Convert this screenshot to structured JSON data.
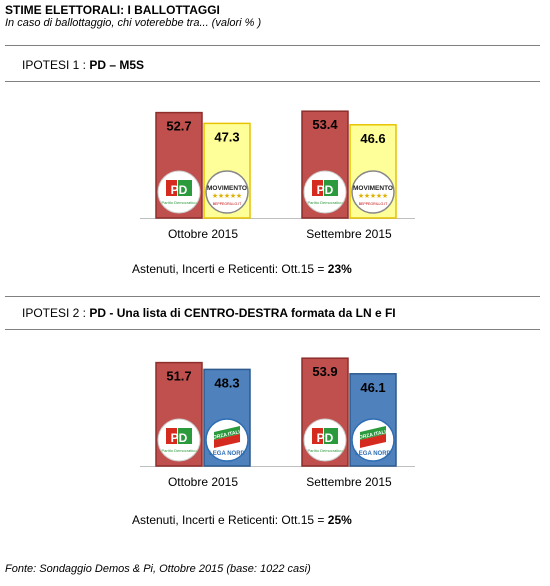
{
  "header": {
    "title": "STIME ELETTORALI:  I BALLOTTAGGI",
    "subtitle": "In caso di ballottaggio, chi voterebbe tra... (valori % )"
  },
  "source": "Fonte: Sondaggio Demos & Pi, Ottobre 2015 (base: 1022 casi)",
  "colors": {
    "pd": "#c0504d",
    "m5s": "#ffff99",
    "cdx": "#4f81bd"
  },
  "chart_data": [
    {
      "type": "bar",
      "hypothesis_label": "IPOTESI 1 :",
      "hypothesis_text": "PD – M5S",
      "categories": [
        "Ottobre 2015",
        "Settembre 2015"
      ],
      "series": [
        {
          "values": [
            52.7,
            53.4
          ],
          "labels": [
            "52.7",
            "53.4"
          ],
          "color": "#c0504d",
          "logo": "pd-logo"
        },
        {
          "values": [
            47.3,
            46.6
          ],
          "labels": [
            "47.3",
            "46.6"
          ],
          "color": "#ffff99",
          "logo": "m5s-logo"
        }
      ],
      "ylim": [
        0,
        60
      ],
      "footer_prefix": "Astenuti, Incerti e Reticenti: Ott.15 =",
      "footer_value": "23%",
      "logo_text": {
        "pd": "PD",
        "pd_small": "Partito Democratico",
        "m5s": "MOVIMENTO",
        "m5s_small": "BEPPEGRILLO.IT"
      }
    },
    {
      "type": "bar",
      "hypothesis_label": "IPOTESI 2 :",
      "hypothesis_text": "PD -  Una lista di CENTRO-DESTRA  formata da LN e FI",
      "categories": [
        "Ottobre 2015",
        "Settembre 2015"
      ],
      "series": [
        {
          "values": [
            51.7,
            53.9
          ],
          "labels": [
            "51.7",
            "53.9"
          ],
          "color": "#c0504d",
          "logo": "pd-logo"
        },
        {
          "values": [
            48.3,
            46.1
          ],
          "labels": [
            "48.3",
            "46.1"
          ],
          "color": "#4f81bd",
          "logo": "lega-fi-logo"
        }
      ],
      "ylim": [
        0,
        60
      ],
      "footer_prefix": "Astenuti, Incerti e Reticenti: Ott.15 =",
      "footer_value": "25%",
      "logo_text": {
        "pd": "PD",
        "pd_small": "Partito Democratico",
        "fi": "FORZA ITALIA",
        "lega": "LEGA NORD"
      }
    }
  ]
}
